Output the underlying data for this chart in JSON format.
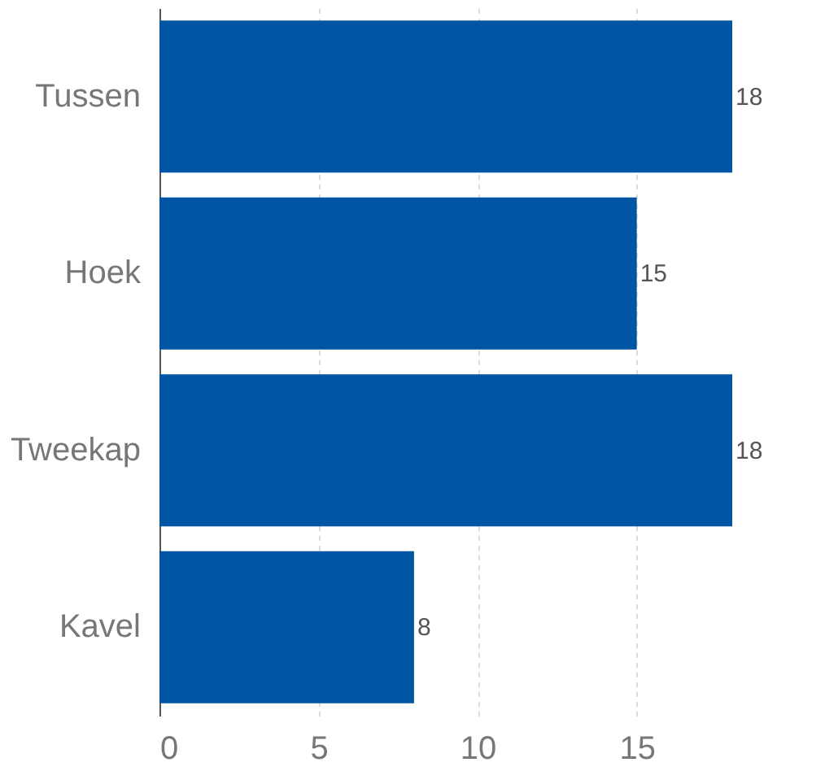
{
  "chart_data": {
    "type": "bar",
    "orientation": "horizontal",
    "categories": [
      "Tussen",
      "Hoek",
      "Tweekap",
      "Kavel"
    ],
    "values": [
      18,
      15,
      18,
      8
    ],
    "color": "#0055a4",
    "xlim": [
      0,
      18
    ],
    "xticks": [
      0,
      5,
      10,
      15
    ],
    "grid": "x",
    "data_labels": true
  }
}
